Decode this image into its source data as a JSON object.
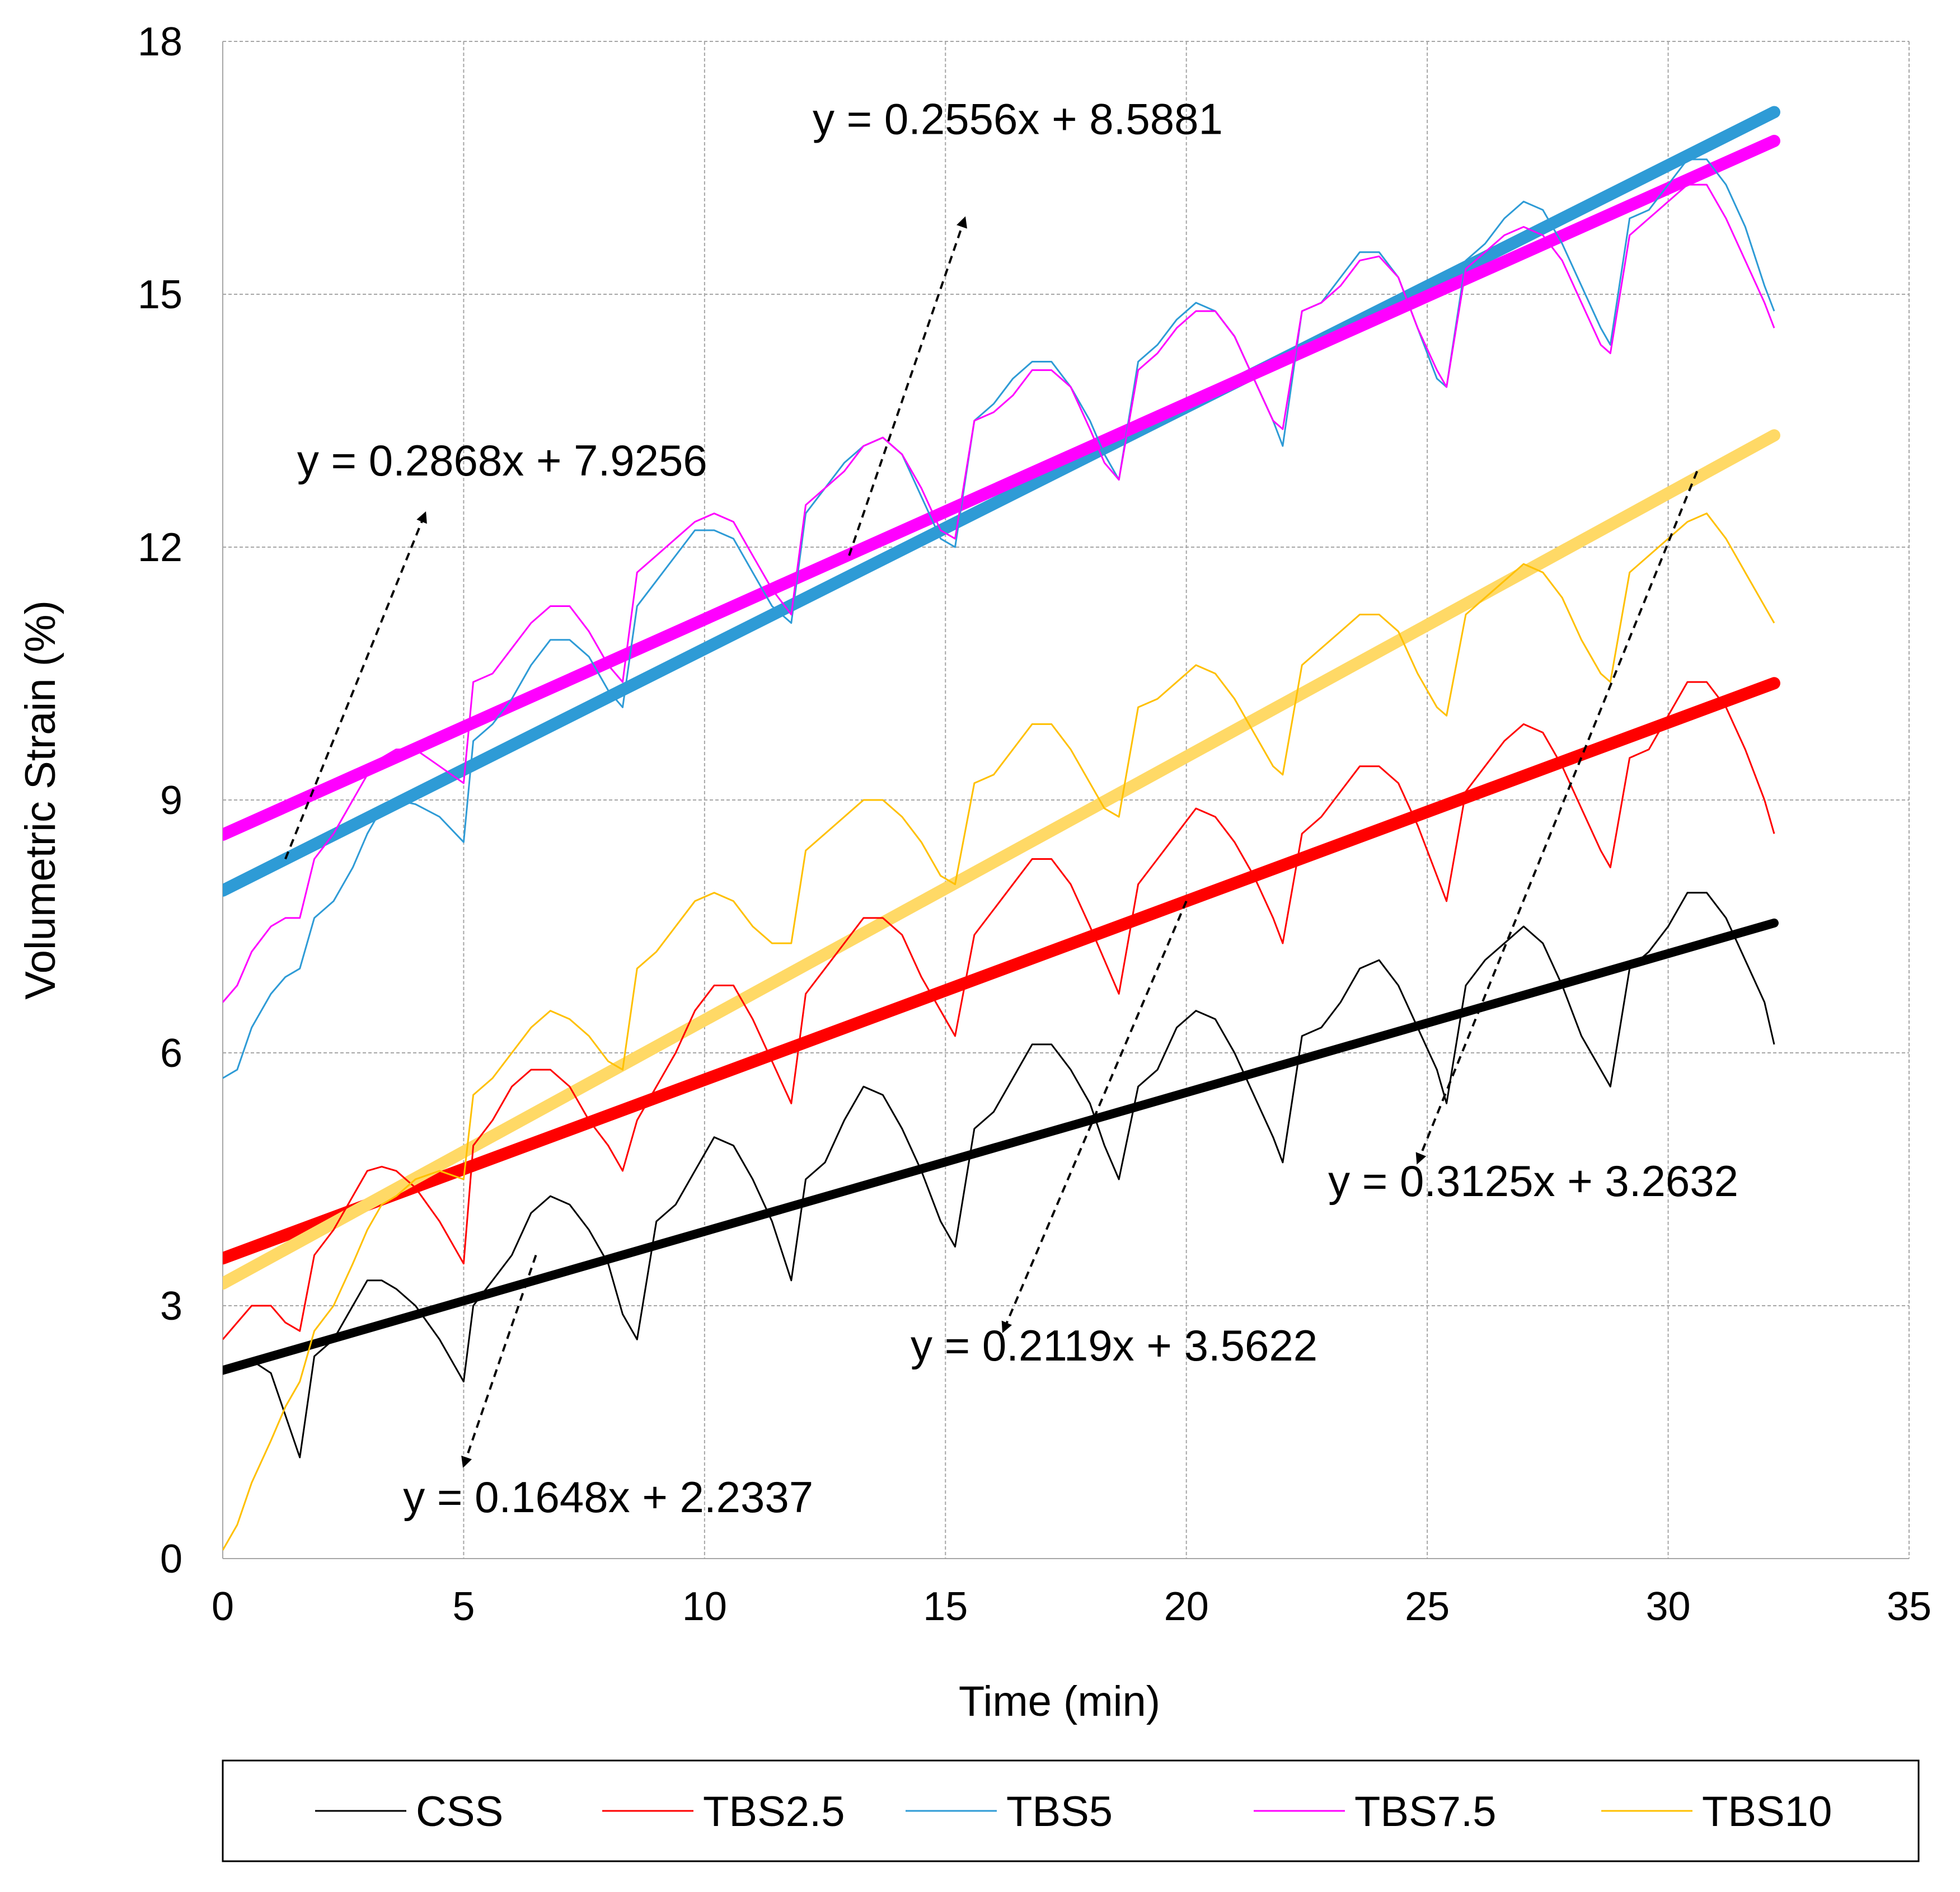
{
  "chart_data": {
    "type": "line",
    "title": "",
    "xlabel": "Time (min)",
    "ylabel": "Volumetric Strain (%)",
    "xlim": [
      0,
      35
    ],
    "ylim": [
      0,
      18
    ],
    "x_ticks": [
      "0",
      "5",
      "10",
      "15",
      "20",
      "25",
      "30",
      "35"
    ],
    "y_ticks": [
      "0",
      "3",
      "6",
      "9",
      "12",
      "15",
      "18"
    ],
    "grid": true,
    "legend_position": "bottom",
    "legend": [
      "CSS",
      "TBS2.5",
      "TBS5",
      "TBS7.5",
      "TBS10"
    ],
    "series": [
      {
        "name": "CSS",
        "color": "#000000",
        "x": [
          0.0,
          0.3,
          0.6,
          1.0,
          1.3,
          1.6,
          1.9,
          2.3,
          2.7,
          3.0,
          3.3,
          3.6,
          4.0,
          4.5,
          5.0,
          5.2,
          5.6,
          6.0,
          6.4,
          6.8,
          7.2,
          7.6,
          8.0,
          8.3,
          8.6,
          9.0,
          9.4,
          9.8,
          10.2,
          10.6,
          11.0,
          11.4,
          11.8,
          12.1,
          12.5,
          12.9,
          13.3,
          13.7,
          14.1,
          14.5,
          14.9,
          15.2,
          15.6,
          16.0,
          16.4,
          16.8,
          17.2,
          17.6,
          18.0,
          18.3,
          18.6,
          19.0,
          19.4,
          19.8,
          20.2,
          20.6,
          21.0,
          21.4,
          21.8,
          22.0,
          22.4,
          22.8,
          23.2,
          23.6,
          24.0,
          24.4,
          24.8,
          25.2,
          25.4,
          25.8,
          26.2,
          26.6,
          27.0,
          27.4,
          27.8,
          28.2,
          28.6,
          28.8,
          29.2,
          29.6,
          30.0,
          30.4,
          30.8,
          31.2,
          31.6,
          32.0,
          32.2
        ],
        "y": [
          2.2,
          2.3,
          2.35,
          2.2,
          1.7,
          1.2,
          2.4,
          2.6,
          3.0,
          3.3,
          3.3,
          3.2,
          3.0,
          2.6,
          2.1,
          3.0,
          3.3,
          3.6,
          4.1,
          4.3,
          4.2,
          3.9,
          3.5,
          2.9,
          2.6,
          4.0,
          4.2,
          4.6,
          5.0,
          4.9,
          4.5,
          4.0,
          3.3,
          4.5,
          4.7,
          5.2,
          5.6,
          5.5,
          5.1,
          4.6,
          4.0,
          3.7,
          5.1,
          5.3,
          5.7,
          6.1,
          6.1,
          5.8,
          5.4,
          4.9,
          4.5,
          5.6,
          5.8,
          6.3,
          6.5,
          6.4,
          6.0,
          5.5,
          5.0,
          4.7,
          6.2,
          6.3,
          6.6,
          7.0,
          7.1,
          6.8,
          6.3,
          5.8,
          5.4,
          6.8,
          7.1,
          7.3,
          7.5,
          7.3,
          6.8,
          6.2,
          5.8,
          5.6,
          7.0,
          7.2,
          7.5,
          7.9,
          7.9,
          7.6,
          7.1,
          6.6,
          6.1
        ]
      },
      {
        "name": "TBS2.5",
        "color": "#ff0000",
        "x": [
          0.0,
          0.3,
          0.6,
          1.0,
          1.3,
          1.6,
          1.9,
          2.3,
          2.7,
          3.0,
          3.3,
          3.6,
          4.0,
          4.5,
          5.0,
          5.2,
          5.6,
          6.0,
          6.4,
          6.8,
          7.2,
          7.6,
          8.0,
          8.3,
          8.6,
          9.0,
          9.4,
          9.8,
          10.2,
          10.6,
          11.0,
          11.4,
          11.8,
          12.1,
          12.5,
          12.9,
          13.3,
          13.7,
          14.1,
          14.5,
          14.9,
          15.2,
          15.6,
          16.0,
          16.4,
          16.8,
          17.2,
          17.6,
          18.0,
          18.3,
          18.6,
          19.0,
          19.4,
          19.8,
          20.2,
          20.6,
          21.0,
          21.4,
          21.8,
          22.0,
          22.4,
          22.8,
          23.2,
          23.6,
          24.0,
          24.4,
          24.8,
          25.2,
          25.4,
          25.8,
          26.2,
          26.6,
          27.0,
          27.4,
          27.8,
          28.2,
          28.6,
          28.8,
          29.2,
          29.6,
          30.0,
          30.4,
          30.8,
          31.2,
          31.6,
          32.0,
          32.2
        ],
        "y": [
          2.6,
          2.8,
          3.0,
          3.0,
          2.8,
          2.7,
          3.6,
          3.9,
          4.3,
          4.6,
          4.65,
          4.6,
          4.4,
          4.0,
          3.5,
          4.9,
          5.2,
          5.6,
          5.8,
          5.8,
          5.6,
          5.2,
          4.9,
          4.6,
          5.2,
          5.6,
          6.0,
          6.5,
          6.8,
          6.8,
          6.4,
          5.9,
          5.4,
          6.7,
          7.0,
          7.3,
          7.6,
          7.6,
          7.4,
          6.9,
          6.5,
          6.2,
          7.4,
          7.7,
          8.0,
          8.3,
          8.3,
          8.0,
          7.5,
          7.1,
          6.7,
          8.0,
          8.3,
          8.6,
          8.9,
          8.8,
          8.5,
          8.1,
          7.6,
          7.3,
          8.6,
          8.8,
          9.1,
          9.4,
          9.4,
          9.2,
          8.7,
          8.1,
          7.8,
          9.1,
          9.4,
          9.7,
          9.9,
          9.8,
          9.4,
          8.9,
          8.4,
          8.2,
          9.5,
          9.6,
          10.0,
          10.4,
          10.4,
          10.1,
          9.6,
          9.0,
          8.6
        ]
      },
      {
        "name": "TBS5",
        "color": "#2e9bd6",
        "x": [
          0.0,
          0.3,
          0.6,
          1.0,
          1.3,
          1.6,
          1.9,
          2.3,
          2.7,
          3.0,
          3.3,
          3.6,
          4.0,
          4.5,
          5.0,
          5.2,
          5.6,
          6.0,
          6.4,
          6.8,
          7.2,
          7.6,
          8.0,
          8.3,
          8.6,
          9.0,
          9.4,
          9.8,
          10.2,
          10.6,
          11.0,
          11.4,
          11.8,
          12.1,
          12.5,
          12.9,
          13.3,
          13.7,
          14.1,
          14.5,
          14.9,
          15.2,
          15.6,
          16.0,
          16.4,
          16.8,
          17.2,
          17.6,
          18.0,
          18.3,
          18.6,
          19.0,
          19.4,
          19.8,
          20.2,
          20.6,
          21.0,
          21.4,
          21.8,
          22.0,
          22.4,
          22.8,
          23.2,
          23.6,
          24.0,
          24.4,
          24.8,
          25.2,
          25.4,
          25.8,
          26.2,
          26.6,
          27.0,
          27.4,
          27.8,
          28.2,
          28.6,
          28.8,
          29.2,
          29.6,
          30.0,
          30.4,
          30.8,
          31.2,
          31.6,
          32.0,
          32.2
        ],
        "y": [
          5.7,
          5.8,
          6.3,
          6.7,
          6.9,
          7.0,
          7.6,
          7.8,
          8.2,
          8.6,
          8.9,
          9.0,
          8.95,
          8.8,
          8.5,
          9.7,
          9.9,
          10.2,
          10.6,
          10.9,
          10.9,
          10.7,
          10.3,
          10.1,
          11.3,
          11.6,
          11.9,
          12.2,
          12.2,
          12.1,
          11.7,
          11.3,
          11.1,
          12.4,
          12.7,
          13.0,
          13.2,
          13.3,
          13.1,
          12.6,
          12.1,
          12.0,
          13.5,
          13.7,
          14.0,
          14.2,
          14.2,
          13.9,
          13.5,
          13.1,
          12.8,
          14.2,
          14.4,
          14.7,
          14.9,
          14.8,
          14.5,
          14.0,
          13.5,
          13.2,
          14.8,
          14.9,
          15.2,
          15.5,
          15.5,
          15.2,
          14.6,
          14.0,
          13.9,
          15.4,
          15.6,
          15.9,
          16.1,
          16.0,
          15.6,
          15.1,
          14.6,
          14.4,
          15.9,
          16.0,
          16.3,
          16.6,
          16.6,
          16.3,
          15.8,
          15.1,
          14.8
        ]
      },
      {
        "name": "TBS7.5",
        "color": "#ff00ff",
        "x": [
          0.0,
          0.3,
          0.6,
          1.0,
          1.3,
          1.6,
          1.9,
          2.3,
          2.7,
          3.0,
          3.3,
          3.6,
          4.0,
          4.5,
          5.0,
          5.2,
          5.6,
          6.0,
          6.4,
          6.8,
          7.2,
          7.6,
          8.0,
          8.3,
          8.6,
          9.0,
          9.4,
          9.8,
          10.2,
          10.6,
          11.0,
          11.4,
          11.8,
          12.1,
          12.5,
          12.9,
          13.3,
          13.7,
          14.1,
          14.5,
          14.9,
          15.2,
          15.6,
          16.0,
          16.4,
          16.8,
          17.2,
          17.6,
          18.0,
          18.3,
          18.6,
          19.0,
          19.4,
          19.8,
          20.2,
          20.6,
          21.0,
          21.4,
          21.8,
          22.0,
          22.4,
          22.8,
          23.2,
          23.6,
          24.0,
          24.4,
          24.8,
          25.2,
          25.4,
          25.8,
          26.2,
          26.6,
          27.0,
          27.4,
          27.8,
          28.2,
          28.6,
          28.8,
          29.2,
          29.6,
          30.0,
          30.4,
          30.8,
          31.2,
          31.6,
          32.0,
          32.2
        ],
        "y": [
          6.6,
          6.8,
          7.2,
          7.5,
          7.6,
          7.6,
          8.3,
          8.6,
          9.0,
          9.3,
          9.5,
          9.6,
          9.6,
          9.4,
          9.2,
          10.4,
          10.5,
          10.8,
          11.1,
          11.3,
          11.3,
          11.0,
          10.6,
          10.4,
          11.7,
          11.9,
          12.1,
          12.3,
          12.4,
          12.3,
          11.9,
          11.5,
          11.2,
          12.5,
          12.7,
          12.9,
          13.2,
          13.3,
          13.1,
          12.7,
          12.2,
          12.1,
          13.5,
          13.6,
          13.8,
          14.1,
          14.1,
          13.9,
          13.4,
          13.0,
          12.8,
          14.1,
          14.3,
          14.6,
          14.8,
          14.8,
          14.5,
          14.0,
          13.5,
          13.4,
          14.8,
          14.9,
          15.1,
          15.4,
          15.45,
          15.2,
          14.6,
          14.1,
          13.9,
          15.3,
          15.5,
          15.7,
          15.8,
          15.7,
          15.4,
          14.9,
          14.4,
          14.3,
          15.7,
          15.9,
          16.1,
          16.3,
          16.3,
          15.9,
          15.4,
          14.9,
          14.6
        ]
      },
      {
        "name": "TBS10",
        "color": "#ffc000",
        "x": [
          0.0,
          0.3,
          0.6,
          1.0,
          1.3,
          1.6,
          1.9,
          2.3,
          2.7,
          3.0,
          3.3,
          3.6,
          4.0,
          4.5,
          5.0,
          5.2,
          5.6,
          6.0,
          6.4,
          6.8,
          7.2,
          7.6,
          8.0,
          8.3,
          8.6,
          9.0,
          9.4,
          9.8,
          10.2,
          10.6,
          11.0,
          11.4,
          11.8,
          12.1,
          12.5,
          12.9,
          13.3,
          13.7,
          14.1,
          14.5,
          14.9,
          15.2,
          15.6,
          16.0,
          16.4,
          16.8,
          17.2,
          17.6,
          18.0,
          18.3,
          18.6,
          19.0,
          19.4,
          19.8,
          20.2,
          20.6,
          21.0,
          21.4,
          21.8,
          22.0,
          22.4,
          22.8,
          23.2,
          23.6,
          24.0,
          24.4,
          24.8,
          25.2,
          25.4,
          25.8,
          26.2,
          26.6,
          27.0,
          27.4,
          27.8,
          28.2,
          28.6,
          28.8,
          29.2,
          29.6,
          30.0,
          30.4,
          30.8,
          31.2,
          31.6,
          32.0,
          32.2
        ],
        "y": [
          0.1,
          0.4,
          0.9,
          1.4,
          1.8,
          2.1,
          2.7,
          3.0,
          3.5,
          3.9,
          4.2,
          4.3,
          4.5,
          4.6,
          4.5,
          5.5,
          5.7,
          6.0,
          6.3,
          6.5,
          6.4,
          6.2,
          5.9,
          5.8,
          7.0,
          7.2,
          7.5,
          7.8,
          7.9,
          7.8,
          7.5,
          7.3,
          7.3,
          8.4,
          8.6,
          8.8,
          9.0,
          9.0,
          8.8,
          8.5,
          8.1,
          8.0,
          9.2,
          9.3,
          9.6,
          9.9,
          9.9,
          9.6,
          9.2,
          8.9,
          8.8,
          10.1,
          10.2,
          10.4,
          10.6,
          10.5,
          10.2,
          9.8,
          9.4,
          9.3,
          10.6,
          10.8,
          11.0,
          11.2,
          11.2,
          11.0,
          10.5,
          10.1,
          10.0,
          11.2,
          11.4,
          11.6,
          11.8,
          11.7,
          11.4,
          10.9,
          10.5,
          10.4,
          11.7,
          11.9,
          12.1,
          12.3,
          12.4,
          12.1,
          11.7,
          11.3,
          11.1
        ]
      }
    ],
    "trendlines": [
      {
        "series": "CSS",
        "slope": 0.1648,
        "intercept": 2.2337,
        "color": "#000000",
        "x_range": [
          0,
          32.2
        ]
      },
      {
        "series": "TBS2.5",
        "slope": 0.2119,
        "intercept": 3.5622,
        "color": "#ff0000",
        "x_range": [
          0,
          32.2
        ]
      },
      {
        "series": "TBS5",
        "slope": 0.2868,
        "intercept": 7.9256,
        "color": "#2e9bd6",
        "x_range": [
          0,
          32.2
        ]
      },
      {
        "series": "TBS7.5",
        "slope": 0.2556,
        "intercept": 8.5881,
        "color": "#ff00ff",
        "x_range": [
          0,
          32.2
        ]
      },
      {
        "series": "TBS10",
        "slope": 0.3125,
        "intercept": 3.2632,
        "color": "#ffd966",
        "x_range": [
          0,
          32.2
        ]
      }
    ],
    "annotations": [
      {
        "text": "y = 0.2556x + 8.5881",
        "x": 16.5,
        "y": 16.9,
        "arrow_from": [
          13.0,
          11.9
        ],
        "arrow_to": [
          15.4,
          15.9
        ]
      },
      {
        "text": "y = 0.2868x + 7.9256",
        "x": 5.8,
        "y": 12.85,
        "arrow_from": [
          1.3,
          8.3
        ],
        "arrow_to": [
          4.2,
          12.4
        ]
      },
      {
        "text": "y = 0.3125x + 3.2632",
        "x": 27.2,
        "y": 4.3,
        "arrow_from": [
          30.6,
          12.9
        ],
        "arrow_to": [
          24.8,
          4.7
        ]
      },
      {
        "text": "y = 0.2119x + 3.5622",
        "x": 18.5,
        "y": 2.35,
        "arrow_from": [
          20.0,
          7.8
        ],
        "arrow_to": [
          16.2,
          2.7
        ]
      },
      {
        "text": "y = 0.1648x + 2.2337",
        "x": 8.0,
        "y": 0.55,
        "arrow_from": [
          6.5,
          3.6
        ],
        "arrow_to": [
          5.0,
          1.1
        ]
      }
    ]
  }
}
